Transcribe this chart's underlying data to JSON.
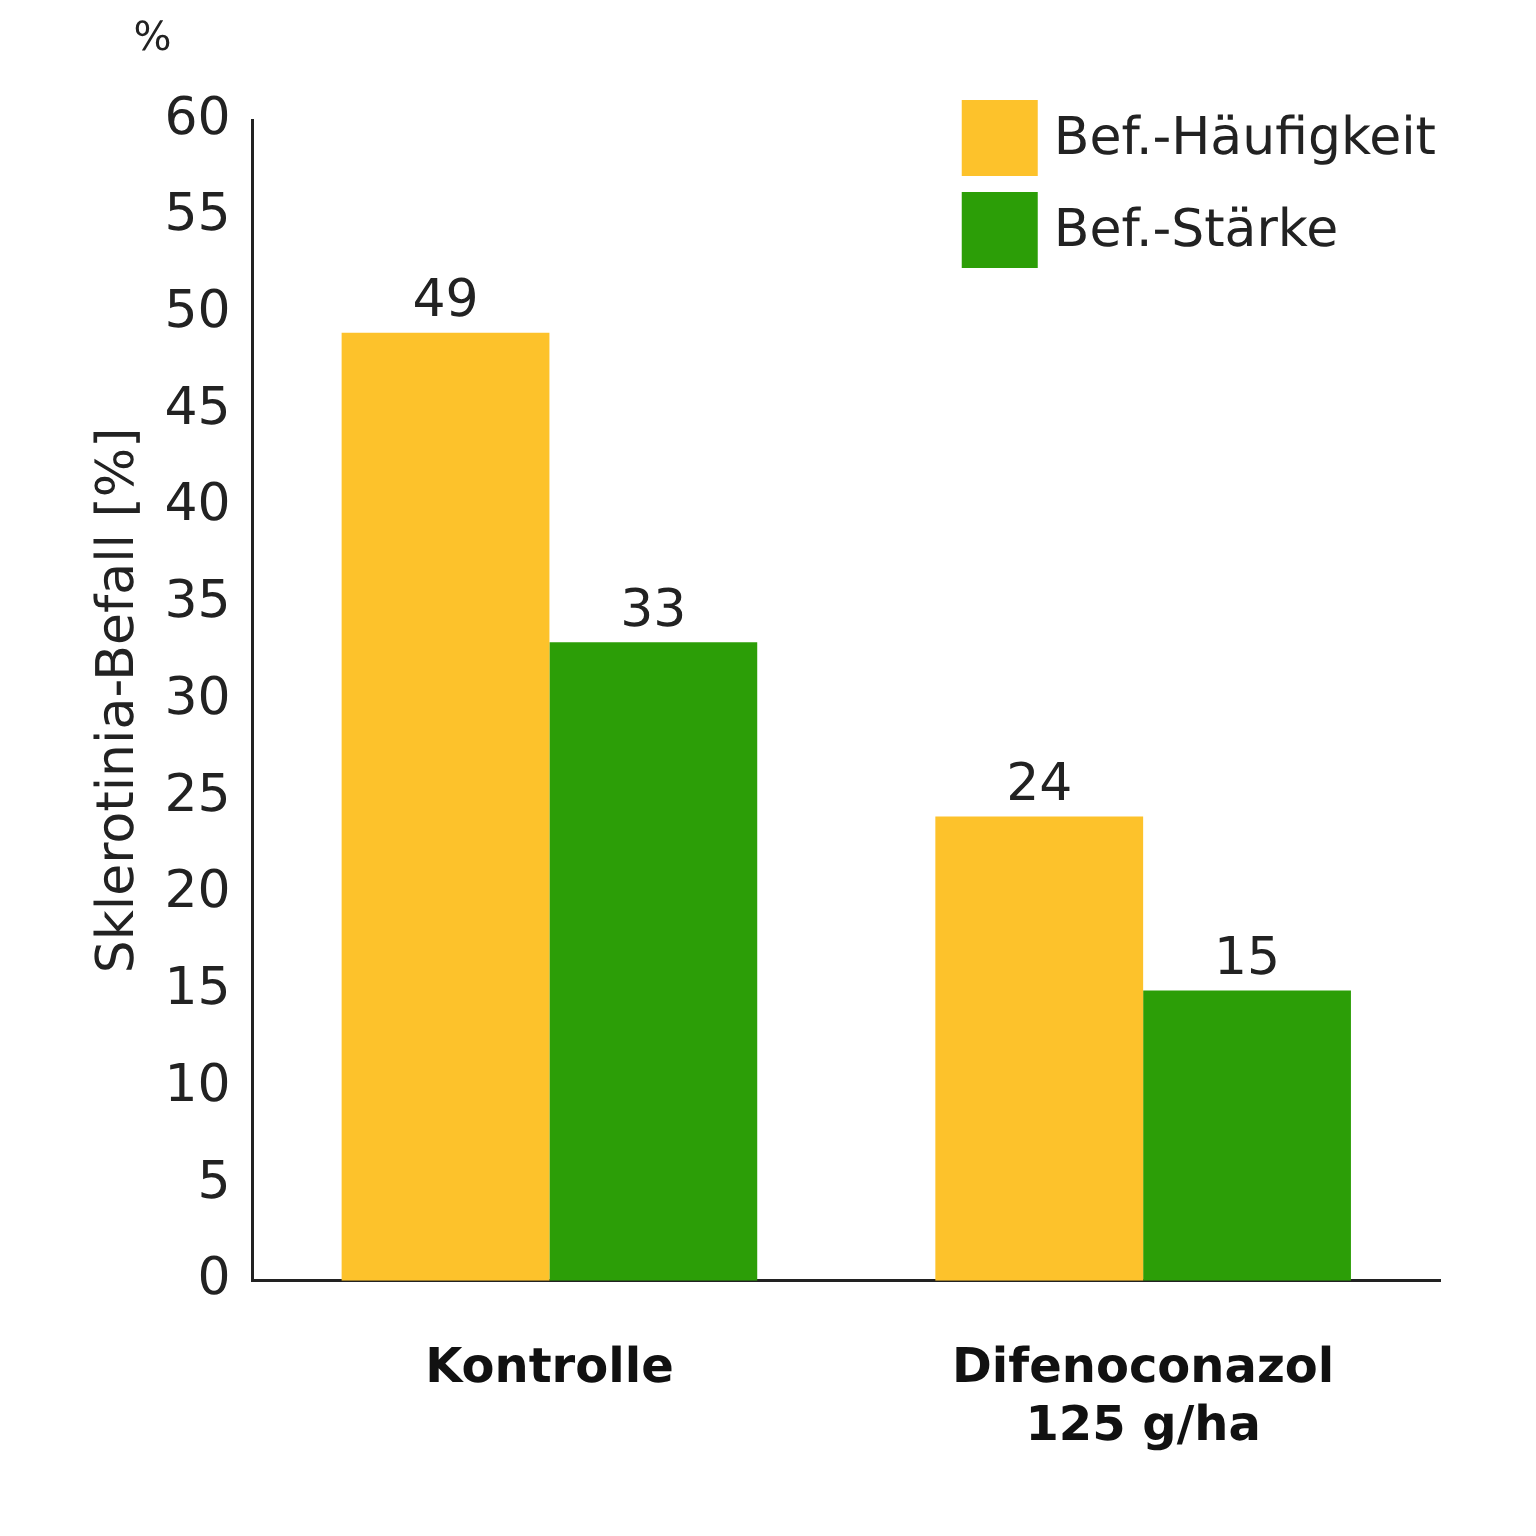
{
  "chart_data": {
    "type": "bar",
    "ylabel": "Sklerotinia-Befall [%]",
    "annotations": [
      "%"
    ],
    "categories": [
      "Kontrolle",
      "Difenoconazol\n125 g/ha"
    ],
    "series": [
      {
        "name": "Bef.-Häufigkeit",
        "color": "#fdc22b",
        "values": [
          49,
          24
        ]
      },
      {
        "name": "Bef.-Stärke",
        "color": "#2c9e07",
        "values": [
          33,
          15
        ]
      }
    ],
    "ylim": [
      0,
      60
    ],
    "yticks": [
      0,
      5,
      10,
      15,
      20,
      25,
      30,
      35,
      40,
      45,
      50,
      55,
      60
    ],
    "data_labels": true,
    "legend": "top right",
    "grid": false
  }
}
